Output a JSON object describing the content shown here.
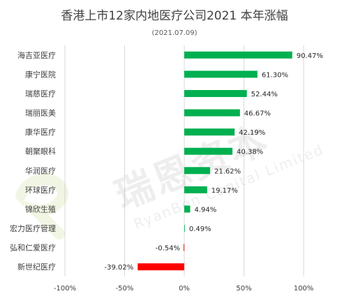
{
  "chart_data": {
    "type": "bar",
    "orientation": "horizontal",
    "title": "香港上市12家内地医疗公司2021 本年涨幅",
    "subtitle": "(2021.07.09)",
    "categories": [
      "海吉亚医疗",
      "康宁医院",
      "瑞慈医疗",
      "瑞丽医美",
      "康华医疗",
      "朝聚眼科",
      "华润医疗",
      "环球医疗",
      "锦欣生殖",
      "宏力医疗管理",
      "弘和仁爱医疗",
      "新世纪医疗"
    ],
    "values": [
      90.47,
      61.3,
      52.44,
      46.67,
      42.19,
      40.38,
      21.62,
      19.17,
      4.94,
      0.49,
      -0.54,
      -39.02
    ],
    "value_labels": [
      "90.47%",
      "61.30%",
      "52.44%",
      "46.67%",
      "42.19%",
      "40.38%",
      "21.62%",
      "19.17%",
      "4.94%",
      "0.49%",
      "-0.54%",
      "-39.02%"
    ],
    "xlim": [
      -100,
      100
    ],
    "x_ticks": [
      -100,
      -50,
      0,
      50,
      100
    ],
    "x_tick_labels": [
      "-100%",
      "-50%",
      "0%",
      "50%",
      "100%"
    ],
    "grid": "vertical",
    "legend": "none",
    "colors": {
      "positive": "#00b050",
      "negative": "#ff0000",
      "grid": "#d9d9d9",
      "text": "#404040"
    },
    "watermark": "瑞恩资本 RyanBen Capital Limited"
  }
}
